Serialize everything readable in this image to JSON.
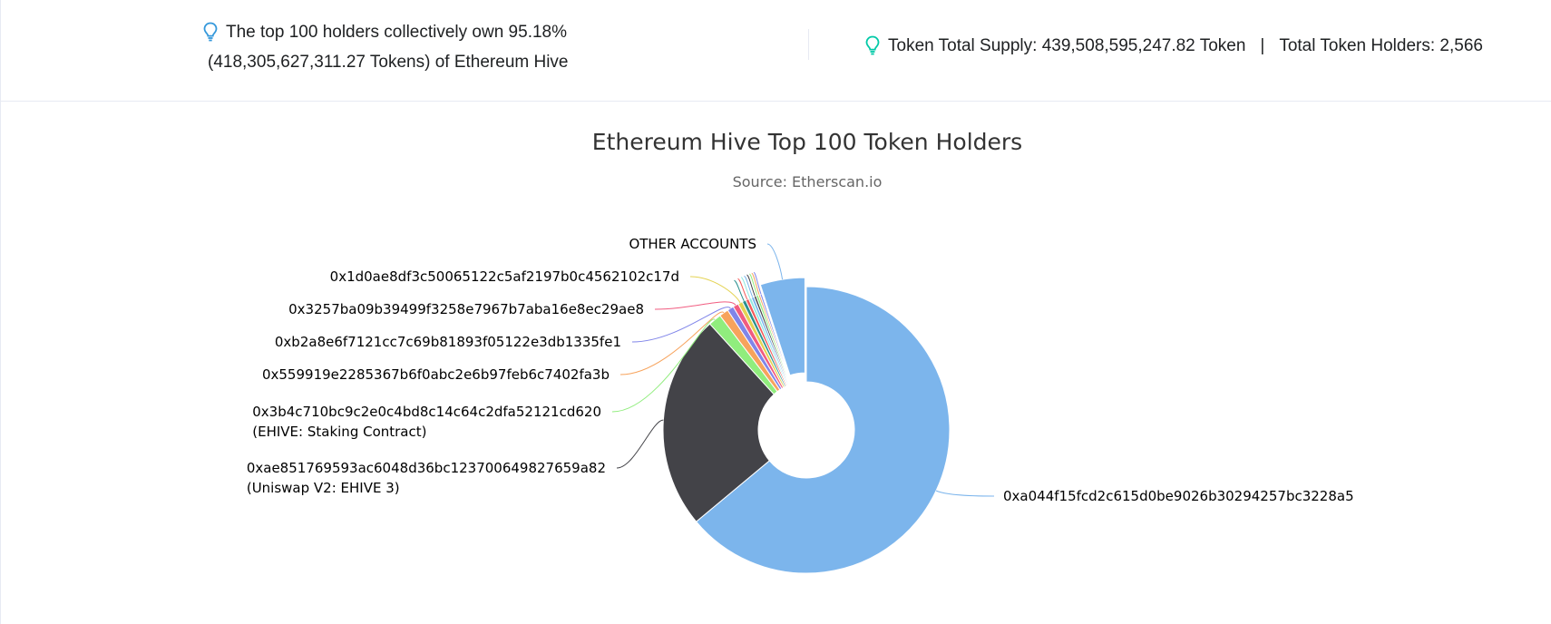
{
  "summary": {
    "top_holders_line1": "The top 100 holders collectively own 95.18%",
    "top_holders_line2": "(418,305,627,311.27 Tokens) of Ethereum Hive",
    "total_supply": "Token Total Supply: 439,508,595,247.82 Token",
    "separator": "|",
    "total_holders": "Total Token Holders: 2,566"
  },
  "colors": {
    "bulb_blue": "#3498db",
    "bulb_teal": "#00c9a7"
  },
  "icons": {
    "summary_left": "lightbulb-icon",
    "summary_right": "lightbulb-icon"
  },
  "chart_data": {
    "type": "pie",
    "style": "donut",
    "title": "Ethereum Hive Top 100 Token Holders",
    "subtitle": "Source: Etherscan.io",
    "slices": [
      {
        "label": "0xa044f15fcd2c615d0be9026b30294257bc3228a5",
        "sublabel": "",
        "value": 61.3,
        "color": "#7cb5ec"
      },
      {
        "label": "0xae851769593ac6048d36bc123700649827659a82",
        "sublabel": "(Uniswap V2: EHIVE 3)",
        "value": 23.3,
        "color": "#434348"
      },
      {
        "label": "0x3b4c710bc9c2e0c4bd8c14c64c2dfa52121cd620",
        "sublabel": "(EHIVE: Staking Contract)",
        "value": 1.4,
        "color": "#90ed7d"
      },
      {
        "label": "0x559919e2285367b6f0abc2e6b97feb6c7402fa3b",
        "sublabel": "",
        "value": 1.0,
        "color": "#f7a35c"
      },
      {
        "label": "0xb2a8e6f7121cc7c69b81893f05122e3db1335fe1",
        "sublabel": "",
        "value": 0.7,
        "color": "#8085e9"
      },
      {
        "label": "0x3257ba09b39499f3258e7967b7aba16e8ec29ae8",
        "sublabel": "",
        "value": 0.6,
        "color": "#f15c80"
      },
      {
        "label": "0x1d0ae8df3c50065122c5af2197b0c4562102c17d",
        "sublabel": "",
        "value": 0.5,
        "color": "#e4d354"
      },
      {
        "label": "",
        "sublabel": "",
        "value": 0.4,
        "color": "#2b908f"
      },
      {
        "label": "",
        "sublabel": "",
        "value": 0.35,
        "color": "#f45b5b"
      },
      {
        "label": "",
        "sublabel": "",
        "value": 0.3,
        "color": "#91e8e1"
      },
      {
        "label": "",
        "sublabel": "",
        "value": 0.3,
        "color": "#7cb5ec"
      },
      {
        "label": "",
        "sublabel": "",
        "value": 0.25,
        "color": "#434348"
      },
      {
        "label": "",
        "sublabel": "",
        "value": 0.25,
        "color": "#90ed7d"
      },
      {
        "label": "",
        "sublabel": "",
        "value": 0.2,
        "color": "#f7a35c"
      },
      {
        "label": "",
        "sublabel": "",
        "value": 0.2,
        "color": "#8085e9"
      },
      {
        "label": "OTHER ACCOUNTS",
        "sublabel": "",
        "value": 4.82,
        "color": "#7cb5ec",
        "sliced": true
      }
    ]
  }
}
